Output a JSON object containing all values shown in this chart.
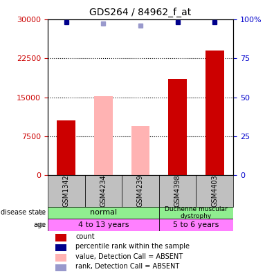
{
  "title": "GDS264 / 84962_f_at",
  "samples": [
    "GSM1342",
    "GSM4234",
    "GSM4239",
    "GSM4398",
    "GSM4403"
  ],
  "bar_values": [
    10500,
    15200,
    9500,
    18500,
    24000
  ],
  "bar_colors": [
    "#cc0000",
    "#ffb3b3",
    "#ffb3b3",
    "#cc0000",
    "#cc0000"
  ],
  "rank_values": [
    98,
    97,
    96,
    98,
    98
  ],
  "rank_colors": [
    "#00008b",
    "#9999cc",
    "#9999cc",
    "#00008b",
    "#00008b"
  ],
  "ylim_left": [
    0,
    30000
  ],
  "ylim_right": [
    0,
    100
  ],
  "yticks_left": [
    0,
    7500,
    15000,
    22500,
    30000
  ],
  "yticks_right": [
    0,
    25,
    50,
    75,
    100
  ],
  "ytick_labels_left": [
    "0",
    "7500",
    "15000",
    "22500",
    "30000"
  ],
  "ytick_labels_right": [
    "0",
    "25",
    "50",
    "75",
    "100%"
  ],
  "disease_state_groups": [
    {
      "label": "normal",
      "samples": [
        "GSM1342",
        "GSM4234",
        "GSM4239"
      ],
      "color": "#90ee90"
    },
    {
      "label": "Duchenne muscular\ndystrophy",
      "samples": [
        "GSM4398",
        "GSM4403"
      ],
      "color": "#90ee90"
    }
  ],
  "age_groups": [
    {
      "label": "4 to 13 years",
      "samples": [
        "GSM1342",
        "GSM4234",
        "GSM4239"
      ],
      "color": "#ff80ff"
    },
    {
      "label": "5 to 6 years",
      "samples": [
        "GSM4398",
        "GSM4403"
      ],
      "color": "#ff80ff"
    }
  ],
  "legend_items": [
    {
      "label": "count",
      "color": "#cc0000",
      "type": "square"
    },
    {
      "label": "percentile rank within the sample",
      "color": "#00008b",
      "type": "square"
    },
    {
      "label": "value, Detection Call = ABSENT",
      "color": "#ffb3b3",
      "type": "square"
    },
    {
      "label": "rank, Detection Call = ABSENT",
      "color": "#9999cc",
      "type": "square"
    }
  ],
  "xlabel_color": "#cc0000",
  "ylabel_right_color": "#0000cc"
}
